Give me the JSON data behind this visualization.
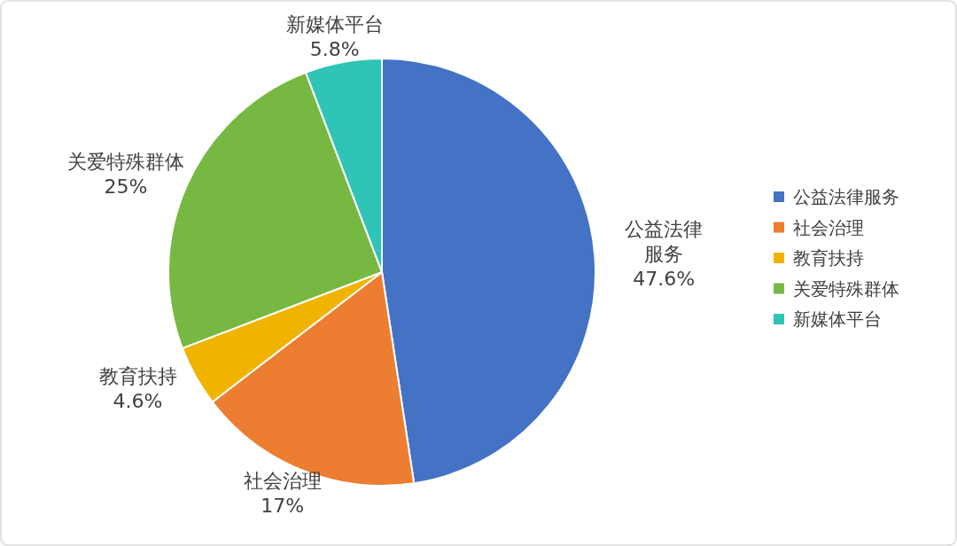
{
  "chart_data": {
    "type": "pie",
    "categories": [
      "公益法律服务",
      "社会治理",
      "教育扶持",
      "关爱特殊群体",
      "新媒体平台"
    ],
    "values": [
      47.6,
      17,
      4.6,
      25,
      5.8
    ],
    "colors": [
      "#4472c4",
      "#ed7d31",
      "#f0b400",
      "#76b842",
      "#2ec4b6"
    ],
    "value_labels": [
      "47.6%",
      "17%",
      "4.6%",
      "25%",
      "5.8%"
    ],
    "legend": "right"
  }
}
